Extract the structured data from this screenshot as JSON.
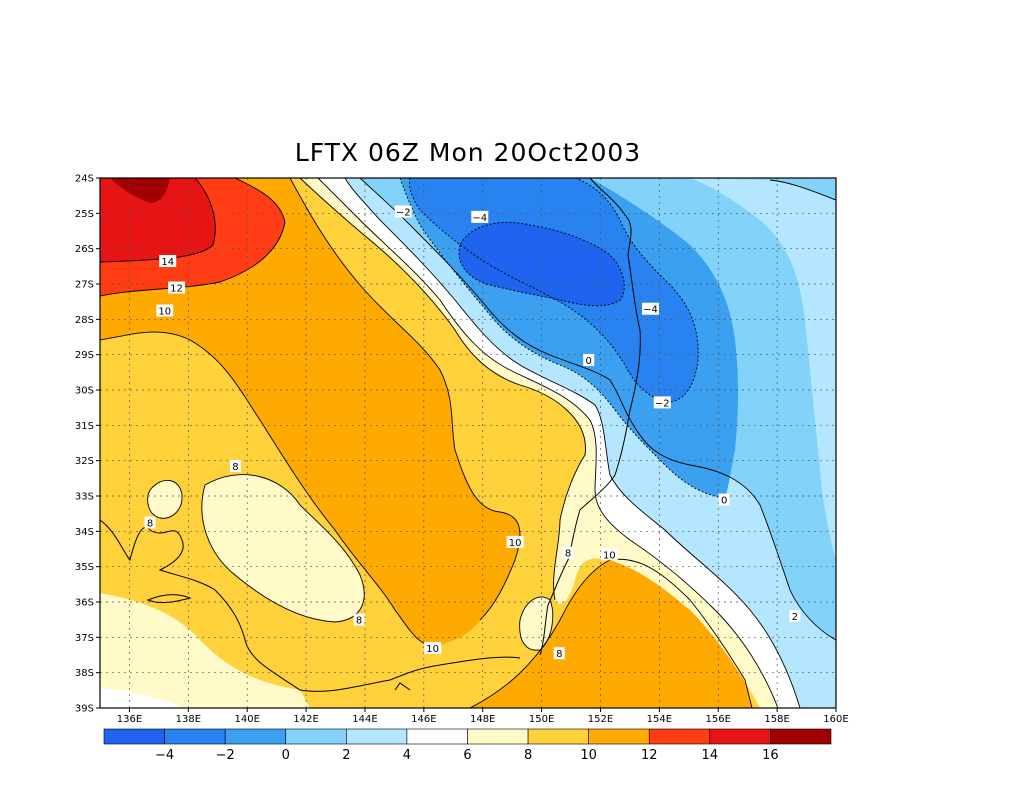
{
  "title": "LFTX 06Z Mon 20Oct2003",
  "map": {
    "lon_min": 135,
    "lon_max": 160,
    "lat_min": -39,
    "lat_max": -24,
    "lat_ticks": [
      {
        "lat": -24,
        "label": "24S"
      },
      {
        "lat": -25,
        "label": "25S"
      },
      {
        "lat": -26,
        "label": "26S"
      },
      {
        "lat": -27,
        "label": "27S"
      },
      {
        "lat": -28,
        "label": "28S"
      },
      {
        "lat": -29,
        "label": "29S"
      },
      {
        "lat": -30,
        "label": "30S"
      },
      {
        "lat": -31,
        "label": "31S"
      },
      {
        "lat": -32,
        "label": "32S"
      },
      {
        "lat": -33,
        "label": "33S"
      },
      {
        "lat": -34,
        "label": "34S"
      },
      {
        "lat": -35,
        "label": "35S"
      },
      {
        "lat": -36,
        "label": "36S"
      },
      {
        "lat": -37,
        "label": "37S"
      },
      {
        "lat": -38,
        "label": "38S"
      },
      {
        "lat": -39,
        "label": "39S"
      }
    ],
    "lon_ticks": [
      {
        "lon": 136,
        "label": "136E"
      },
      {
        "lon": 138,
        "label": "138E"
      },
      {
        "lon": 140,
        "label": "140E"
      },
      {
        "lon": 142,
        "label": "142E"
      },
      {
        "lon": 144,
        "label": "144E"
      },
      {
        "lon": 146,
        "label": "146E"
      },
      {
        "lon": 148,
        "label": "148E"
      },
      {
        "lon": 150,
        "label": "150E"
      },
      {
        "lon": 152,
        "label": "152E"
      },
      {
        "lon": 154,
        "label": "154E"
      },
      {
        "lon": 156,
        "label": "156E"
      },
      {
        "lon": 158,
        "label": "158E"
      },
      {
        "lon": 160,
        "label": "160E"
      }
    ],
    "contour_labels": [
      {
        "text": "14",
        "lon": 137.3,
        "lat": -26.35
      },
      {
        "text": "12",
        "lon": 137.6,
        "lat": -27.1
      },
      {
        "text": "10",
        "lon": 137.2,
        "lat": -27.75
      },
      {
        "text": "8",
        "lon": 139.6,
        "lat": -32.15
      },
      {
        "text": "8",
        "lon": 136.7,
        "lat": -33.75
      },
      {
        "text": "8",
        "lon": 143.8,
        "lat": -36.5
      },
      {
        "text": "10",
        "lon": 146.3,
        "lat": -37.3
      },
      {
        "text": "10",
        "lon": 149.1,
        "lat": -34.3
      },
      {
        "text": "8",
        "lon": 150.9,
        "lat": -34.6
      },
      {
        "text": "10",
        "lon": 152.3,
        "lat": -34.65
      },
      {
        "text": "8",
        "lon": 150.6,
        "lat": -37.45
      },
      {
        "text": "-2",
        "lon": 145.3,
        "lat": -24.95
      },
      {
        "text": "-4",
        "lon": 147.9,
        "lat": -25.1
      },
      {
        "text": "-4",
        "lon": 153.7,
        "lat": -27.7
      },
      {
        "text": "0",
        "lon": 151.6,
        "lat": -29.15
      },
      {
        "text": "-2",
        "lon": 154.1,
        "lat": -30.35
      },
      {
        "text": "0",
        "lon": 156.2,
        "lat": -33.1
      },
      {
        "text": "2",
        "lon": 158.6,
        "lat": -36.4
      }
    ]
  },
  "colorbar": {
    "colors": [
      "#1e64f0",
      "#2882f0",
      "#3ca0f0",
      "#82d2fa",
      "#b4e6ff",
      "#ffffff",
      "#fffac8",
      "#ffd23c",
      "#ffaa00",
      "#ff3c14",
      "#e61414",
      "#a00000"
    ],
    "tick_labels": [
      "−4",
      "−2",
      "0",
      "2",
      "4",
      "6",
      "8",
      "10",
      "12",
      "14",
      "16"
    ]
  },
  "fill_colors": {
    "minus4": "#1e64f0",
    "minus2": "#2882f0",
    "zero": "#3ca0f0",
    "two": "#82d2fa",
    "four": "#b4e6ff",
    "six": "#ffffff",
    "eight": "#fffac8",
    "ten": "#ffd23c",
    "twelve": "#ffaa00",
    "fourteen": "#ff3c14",
    "sixteen": "#e61414",
    "eighteen": "#a00000"
  }
}
